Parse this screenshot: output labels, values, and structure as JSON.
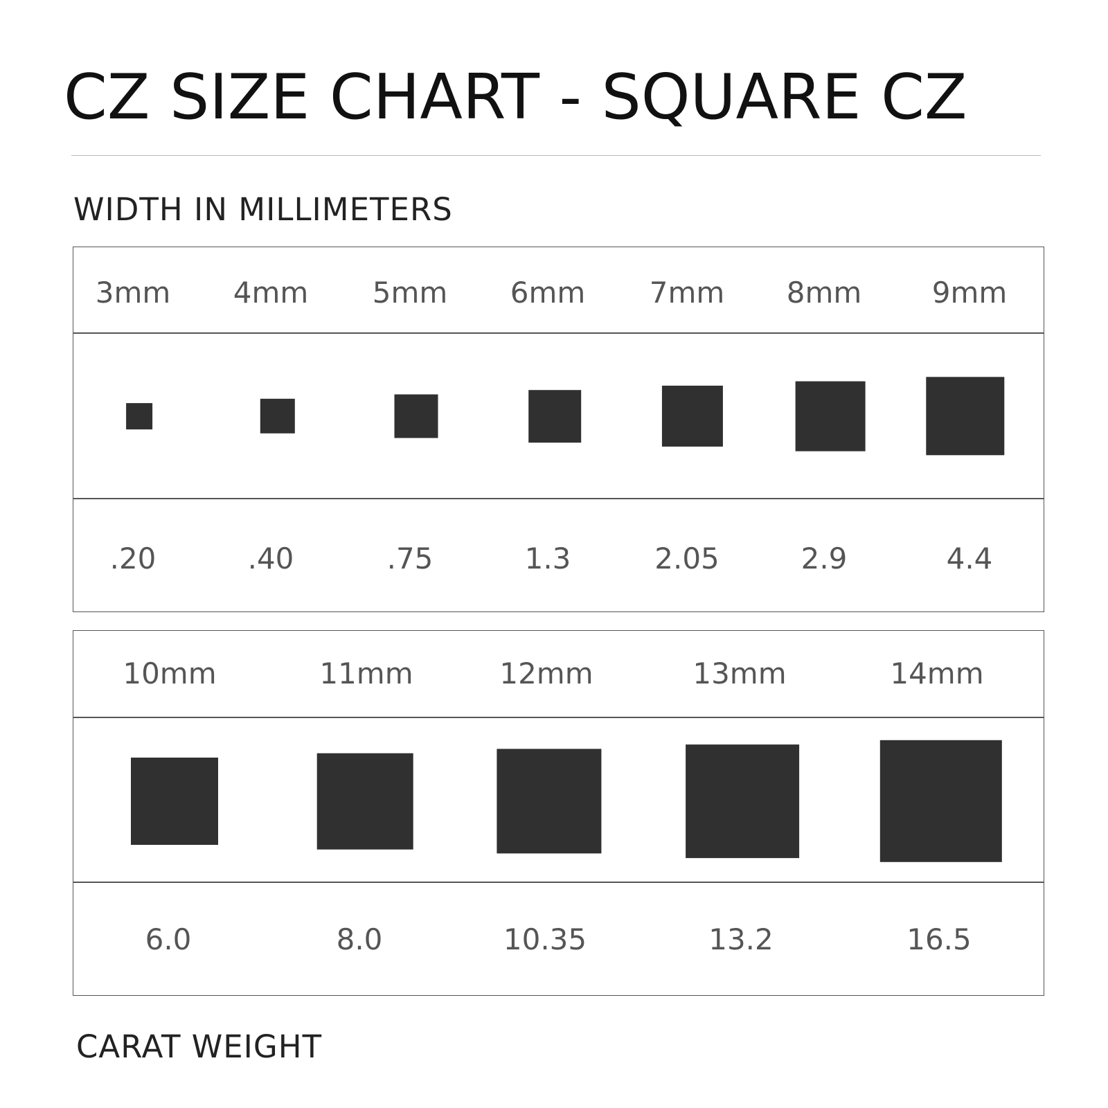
{
  "title": "CZ SIZE CHART - SQUARE CZ",
  "width_label": "WIDTH IN MILLIMETERS",
  "carat_label": "CARAT WEIGHT",
  "colors": {
    "stone": "#303030",
    "text": "#555555",
    "border": "#555555",
    "title": "#111111"
  },
  "chart_data": {
    "type": "table",
    "title": "CZ SIZE CHART - SQUARE CZ",
    "tables": [
      {
        "sizes": [
          "3mm",
          "4mm",
          "5mm",
          "6mm",
          "7mm",
          "8mm",
          "9mm"
        ],
        "mm": [
          3,
          4,
          5,
          6,
          7,
          8,
          9
        ],
        "carats": [
          ".20",
          ".40",
          ".75",
          "1.3",
          "2.05",
          "2.9",
          "4.4"
        ]
      },
      {
        "sizes": [
          "10mm",
          "11mm",
          "12mm",
          "13mm",
          "14mm"
        ],
        "mm": [
          10,
          11,
          12,
          13,
          14
        ],
        "carats": [
          "6.0",
          "8.0",
          "10.35",
          "13.2",
          "16.5"
        ]
      }
    ]
  }
}
